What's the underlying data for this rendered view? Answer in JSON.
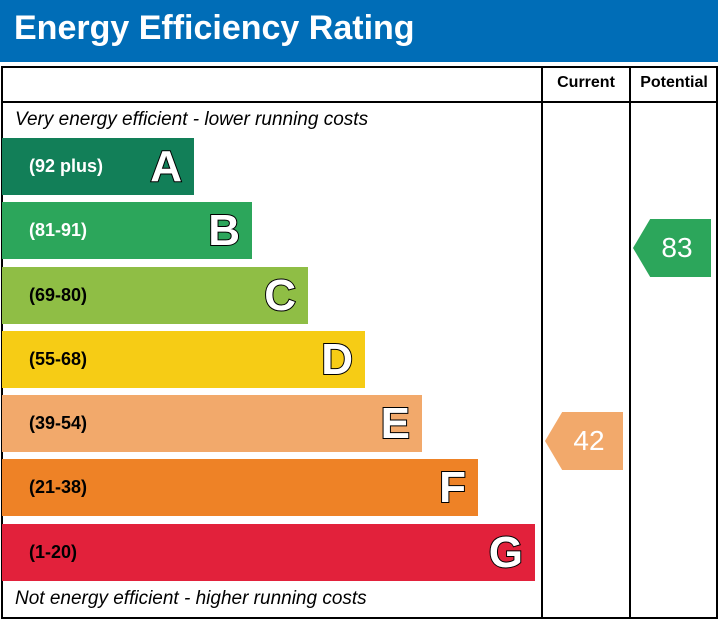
{
  "title": "Energy Efficiency Rating",
  "columns": {
    "current": "Current",
    "potential": "Potential"
  },
  "top_note": "Very energy efficient - lower running costs",
  "bottom_note": "Not energy efficient - higher running costs",
  "chart_data": {
    "type": "bar",
    "bands": [
      {
        "letter": "A",
        "range": "(92 plus)",
        "color": "#127f58"
      },
      {
        "letter": "B",
        "range": "(81-91)",
        "color": "#2ca65b"
      },
      {
        "letter": "C",
        "range": "(69-80)",
        "color": "#8fbe45"
      },
      {
        "letter": "D",
        "range": "(55-68)",
        "color": "#f6cc15"
      },
      {
        "letter": "E",
        "range": "(39-54)",
        "color": "#f2a96b"
      },
      {
        "letter": "F",
        "range": "(21-38)",
        "color": "#ee8226"
      },
      {
        "letter": "G",
        "range": "(1-20)",
        "color": "#e2213b"
      }
    ],
    "current": {
      "value": "42",
      "band": "E"
    },
    "potential": {
      "value": "83",
      "band": "B"
    }
  }
}
